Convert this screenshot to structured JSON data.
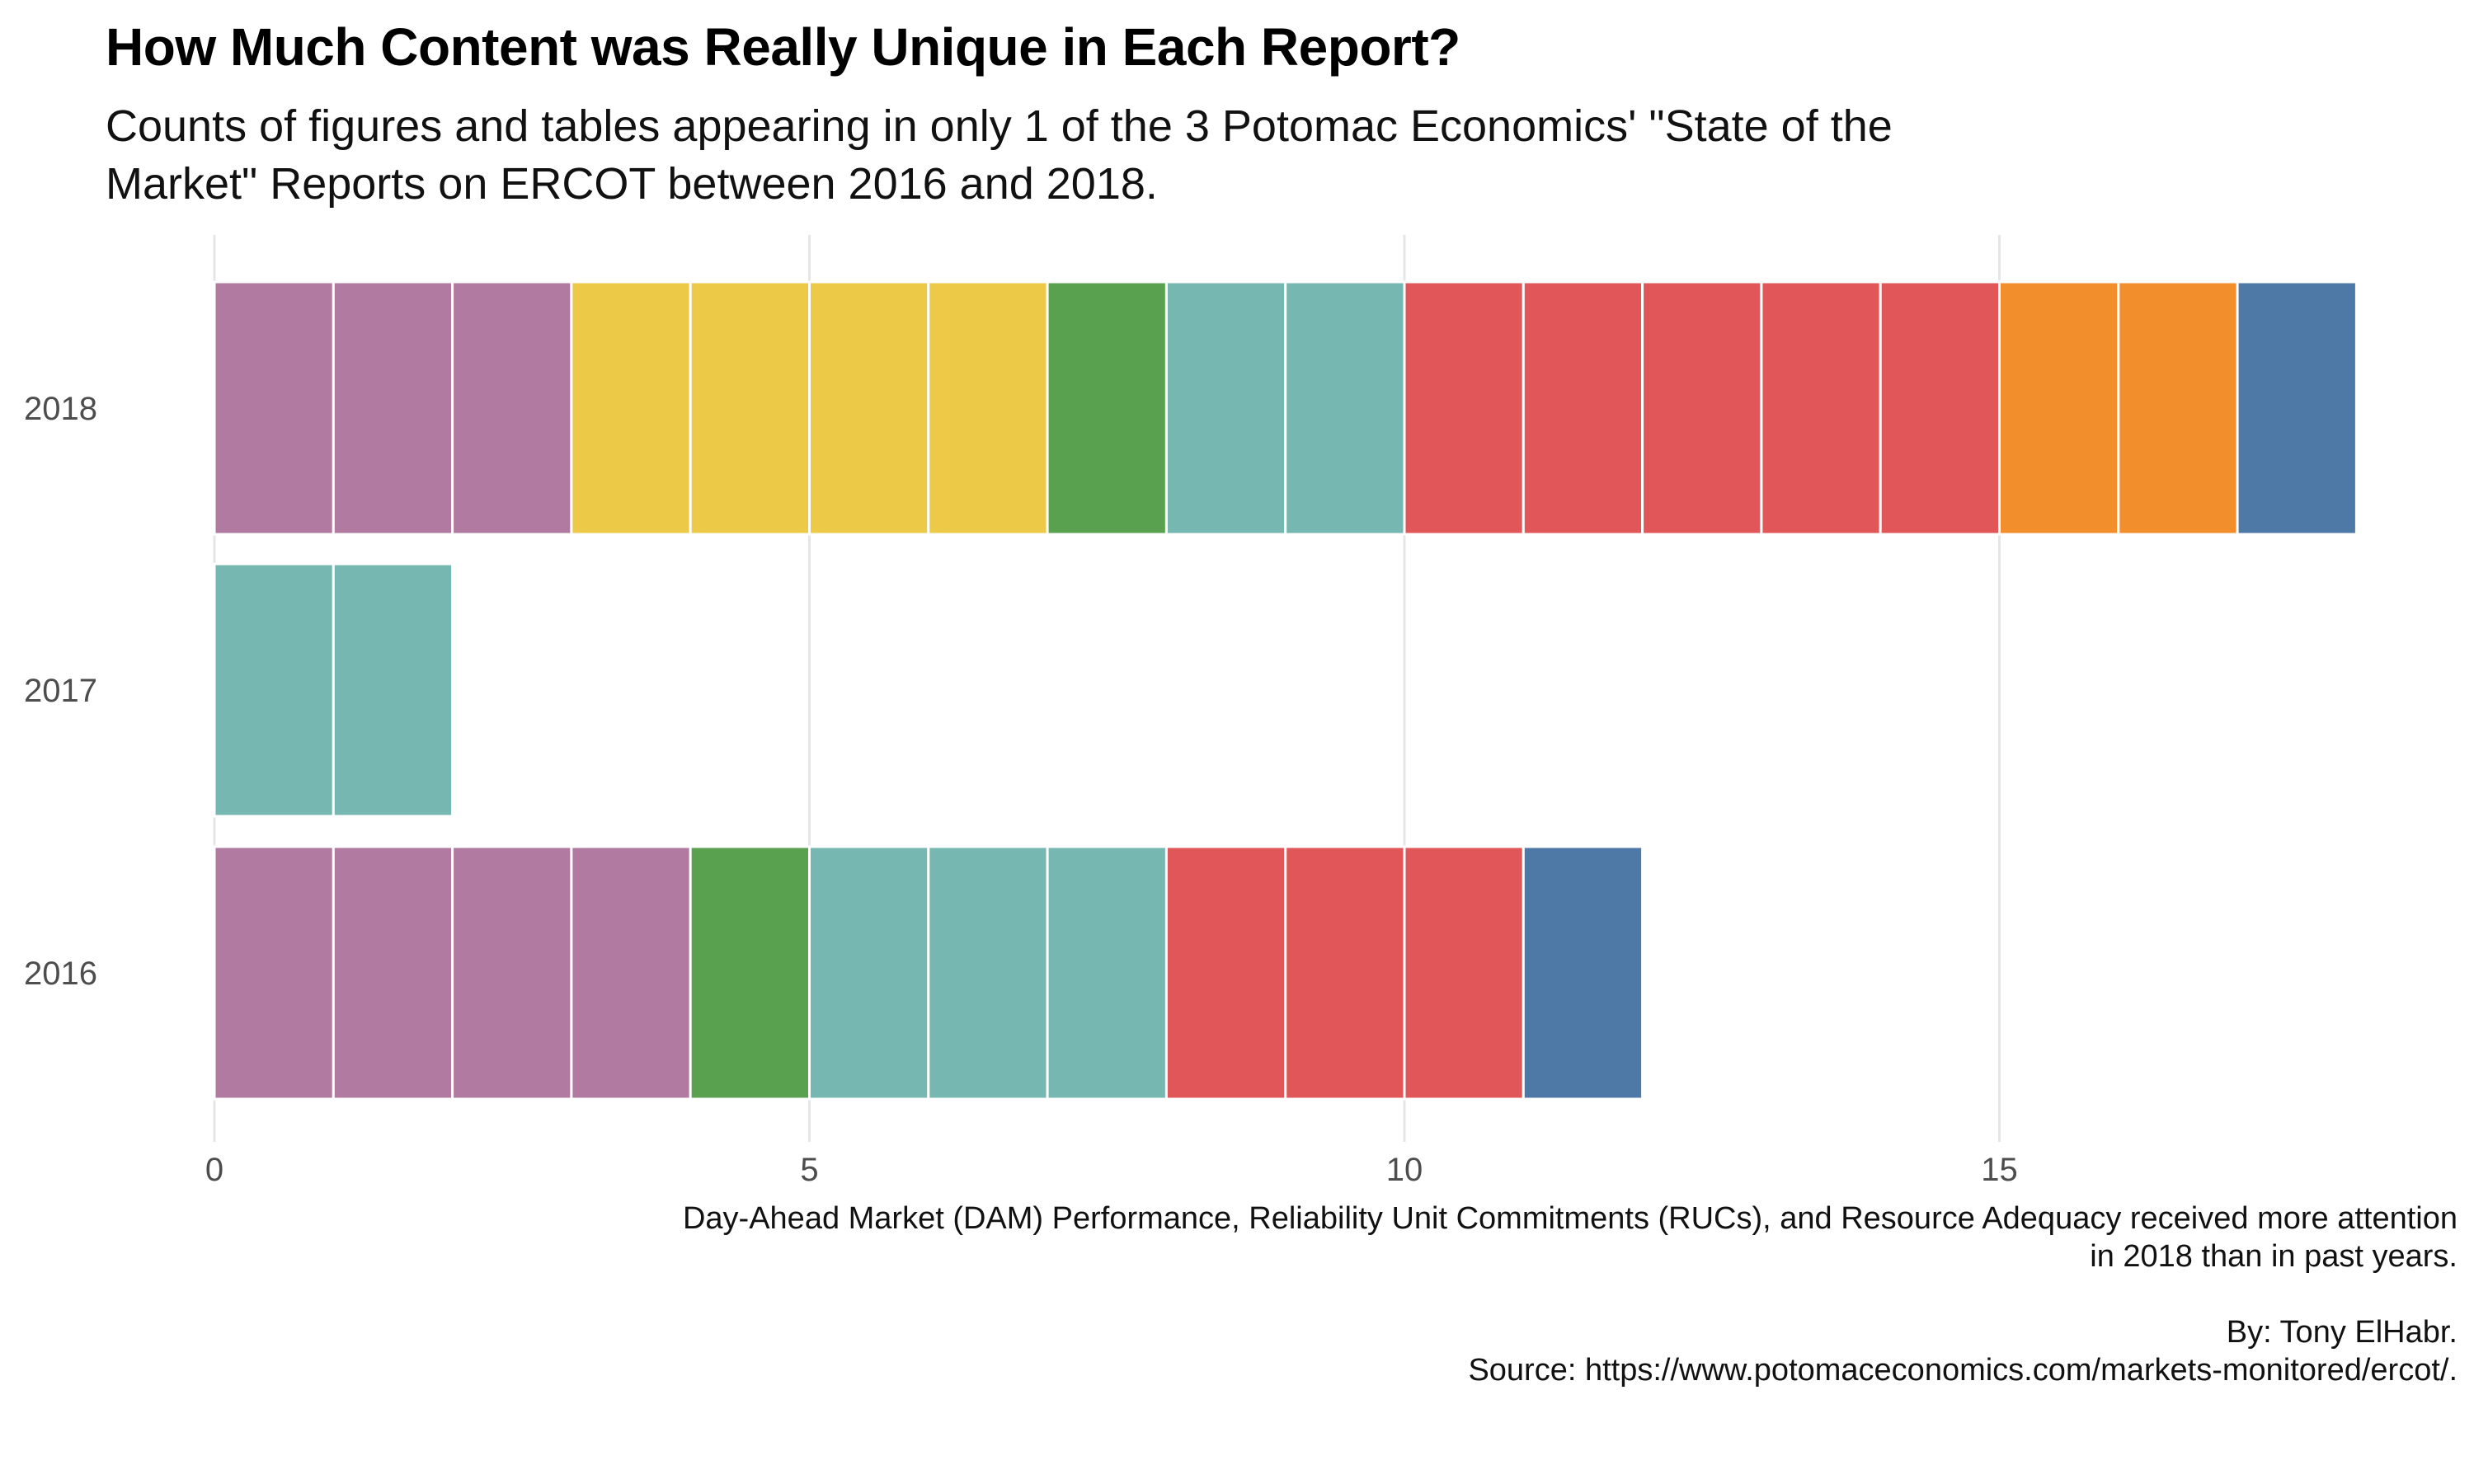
{
  "title": "How Much Content was Really Unique in Each Report?",
  "subtitle": "Counts of figures and tables appearing in only 1 of the 3 Potomac Economics' \"State of the Market\" Reports on ERCOT between 2016 and 2018.",
  "caption": {
    "line1": "Day-Ahead Market (DAM) Performance, Reliability Unit Commitments (RUCs), and Resource Adequacy received more attention",
    "line2": "in 2018 than in past years.",
    "line3": "By: Tony ElHabr.",
    "line4": "Source: https://www.potomaceconomics.com/markets-monitored/ercot/."
  },
  "colors": {
    "purple": "#B07AA1",
    "yellow": "#EDC948",
    "green": "#59A14F",
    "teal": "#76B7B2",
    "red": "#E15759",
    "orange": "#F28E2B",
    "blue": "#4E79A7",
    "grid": "#E6E6E6",
    "tick_text": "#4D4D4D"
  },
  "chart_data": {
    "type": "bar",
    "orientation": "horizontal",
    "stacked": true,
    "categories": [
      "2018",
      "2017",
      "2016"
    ],
    "xlim": [
      0,
      18
    ],
    "x_ticks": [
      0,
      5,
      10,
      15
    ],
    "grid": "vertical major gridlines",
    "legend": "none",
    "series": [
      {
        "color_key": "purple",
        "values": [
          3,
          0,
          4
        ]
      },
      {
        "color_key": "yellow",
        "values": [
          4,
          0,
          0
        ]
      },
      {
        "color_key": "green",
        "values": [
          1,
          0,
          1
        ]
      },
      {
        "color_key": "teal",
        "values": [
          2,
          2,
          3
        ]
      },
      {
        "color_key": "red",
        "values": [
          5,
          0,
          3
        ]
      },
      {
        "color_key": "orange",
        "values": [
          2,
          0,
          0
        ]
      },
      {
        "color_key": "blue",
        "values": [
          1,
          0,
          1
        ]
      }
    ]
  }
}
